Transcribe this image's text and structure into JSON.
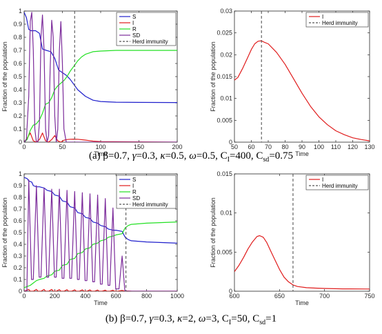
{
  "colors": {
    "S": "#1f1fcc",
    "I": "#e01b1b",
    "R": "#22e022",
    "SD": "#7b2a9a",
    "herd": "#555555"
  },
  "captions": {
    "a": {
      "prefix": "(a) β=0.7, ",
      "gamma": "γ",
      "p1": "=0.3, ",
      "kappa": "κ",
      "p2": "=0.5, ",
      "omega": "ω",
      "p3": "=0.5, C",
      "sub1": "I",
      "p4": "=400, C",
      "sub2": "sd",
      "p5": "=0.75"
    },
    "b": {
      "prefix": "(b) β=0.7, ",
      "gamma": "γ",
      "p1": "=0.3, ",
      "kappa": "κ",
      "p2": "=2, ",
      "omega": "ω",
      "p3": "=3, C",
      "sub1": "I",
      "p4": "=50, C",
      "sub2": "sd",
      "p5": "=1"
    }
  },
  "chart_data": [
    {
      "type": "line",
      "xlabel": "Time",
      "ylabel": "Fraction of the population",
      "xlim": [
        0,
        200
      ],
      "ylim": [
        0,
        1
      ],
      "xticks": [
        0,
        50,
        100,
        150,
        200
      ],
      "yticks": [
        0,
        0.1,
        0.2,
        0.3,
        0.4,
        0.5,
        0.6,
        0.7,
        0.8,
        0.9,
        1
      ],
      "legend": [
        "S",
        "I",
        "R",
        "SD",
        "Herd immunity"
      ],
      "legend_position": "top-right",
      "herd_immunity_x": 66,
      "series": [
        {
          "name": "S",
          "x": [
            0,
            3,
            6,
            9,
            15,
            20,
            24,
            29,
            35,
            40,
            45,
            50,
            55,
            60,
            65,
            70,
            80,
            90,
            100,
            120,
            150,
            200
          ],
          "y": [
            0.99,
            0.95,
            0.86,
            0.85,
            0.85,
            0.83,
            0.71,
            0.7,
            0.69,
            0.64,
            0.55,
            0.53,
            0.51,
            0.48,
            0.44,
            0.4,
            0.35,
            0.32,
            0.31,
            0.305,
            0.303,
            0.302
          ]
        },
        {
          "name": "I",
          "x": [
            0,
            4,
            8,
            12,
            16,
            20,
            24,
            28,
            32,
            36,
            40,
            44,
            48,
            52,
            56,
            60,
            65,
            70,
            80,
            90,
            100,
            200
          ],
          "y": [
            0.0,
            0.03,
            0.07,
            0.01,
            0.0,
            0.02,
            0.07,
            0.01,
            0.0,
            0.02,
            0.05,
            0.01,
            0.0,
            0.015,
            0.02,
            0.022,
            0.023,
            0.022,
            0.016,
            0.008,
            0.004,
            0.0
          ]
        },
        {
          "name": "R",
          "x": [
            0,
            4,
            8,
            12,
            16,
            20,
            24,
            28,
            32,
            36,
            40,
            44,
            48,
            52,
            56,
            60,
            65,
            70,
            75,
            80,
            90,
            100,
            120,
            200
          ],
          "y": [
            0.0,
            0.02,
            0.09,
            0.13,
            0.14,
            0.17,
            0.22,
            0.29,
            0.3,
            0.34,
            0.4,
            0.43,
            0.45,
            0.47,
            0.5,
            0.54,
            0.58,
            0.62,
            0.65,
            0.67,
            0.69,
            0.695,
            0.7,
            0.7
          ]
        },
        {
          "name": "SD",
          "x": [
            0,
            3,
            6,
            8,
            10,
            12,
            14,
            16,
            18,
            20,
            22,
            24,
            26,
            28,
            30,
            32,
            34,
            36,
            38,
            40,
            42,
            44,
            46,
            48,
            50,
            52,
            55,
            60,
            200
          ],
          "y": [
            0.0,
            0.02,
            0.35,
            0.92,
            0.99,
            0.7,
            0.1,
            0.0,
            0.0,
            0.15,
            0.8,
            0.97,
            0.7,
            0.1,
            0.0,
            0.05,
            0.55,
            0.93,
            0.8,
            0.2,
            0.0,
            0.1,
            0.7,
            0.92,
            0.6,
            0.1,
            0.0,
            0.0,
            0.0
          ]
        }
      ]
    },
    {
      "type": "line",
      "xlabel": "Time",
      "ylabel": "Fraction of the population",
      "xlim": [
        50,
        130
      ],
      "ylim": [
        0,
        0.03
      ],
      "xticks": [
        50,
        60,
        70,
        80,
        90,
        100,
        110,
        120,
        130
      ],
      "yticks": [
        0,
        0.005,
        0.01,
        0.015,
        0.02,
        0.025,
        0.03
      ],
      "legend": [
        "I",
        "Herd immunity"
      ],
      "legend_position": "top-right",
      "herd_immunity_x": 66,
      "series": [
        {
          "name": "I",
          "x": [
            50,
            52,
            55,
            58,
            60,
            62,
            64,
            66,
            68,
            70,
            75,
            80,
            85,
            90,
            95,
            100,
            105,
            110,
            115,
            120,
            125,
            130
          ],
          "y": [
            0.0142,
            0.0148,
            0.017,
            0.0195,
            0.0212,
            0.0225,
            0.0231,
            0.0232,
            0.0228,
            0.0225,
            0.0205,
            0.0178,
            0.0145,
            0.0112,
            0.0082,
            0.0058,
            0.004,
            0.0026,
            0.0017,
            0.001,
            0.0006,
            0.0003
          ]
        }
      ]
    },
    {
      "type": "line",
      "xlabel": "Time",
      "ylabel": "Fraction of the population",
      "xlim": [
        0,
        1000
      ],
      "ylim": [
        0,
        1
      ],
      "xticks": [
        0,
        200,
        400,
        600,
        800,
        1000
      ],
      "yticks": [
        0,
        0.1,
        0.2,
        0.3,
        0.4,
        0.5,
        0.6,
        0.7,
        0.8,
        0.9,
        1
      ],
      "legend": [
        "S",
        "I",
        "R",
        "SD",
        "Herd immunity"
      ],
      "legend_position": "top-right",
      "herd_immunity_x": 665,
      "sd_oscillation": {
        "peaks": [
          30,
          80,
          130,
          180,
          230,
          280,
          330,
          380,
          430,
          480,
          530,
          580,
          640
        ],
        "peak_values": [
          0.95,
          0.9,
          0.88,
          0.87,
          0.87,
          0.86,
          0.85,
          0.84,
          0.83,
          0.82,
          0.79,
          0.71,
          0.3
        ],
        "troughs": [
          0.1,
          0.12,
          0.12,
          0.12,
          0.11,
          0.11,
          0.1,
          0.09,
          0.08,
          0.06,
          0.05,
          0.02,
          0.0
        ]
      },
      "series": [
        {
          "name": "S",
          "x": [
            0,
            20,
            30,
            50,
            60,
            80,
            100,
            130,
            150,
            180,
            200,
            230,
            250,
            280,
            300,
            330,
            350,
            380,
            400,
            430,
            450,
            480,
            500,
            530,
            550,
            580,
            600,
            640,
            660,
            680,
            700,
            800,
            1000
          ],
          "y": [
            0.97,
            0.96,
            0.94,
            0.93,
            0.9,
            0.89,
            0.89,
            0.88,
            0.86,
            0.85,
            0.82,
            0.81,
            0.77,
            0.76,
            0.72,
            0.71,
            0.67,
            0.66,
            0.63,
            0.62,
            0.59,
            0.58,
            0.56,
            0.55,
            0.53,
            0.52,
            0.52,
            0.51,
            0.46,
            0.44,
            0.43,
            0.42,
            0.41
          ]
        },
        {
          "name": "I",
          "x": [
            0,
            30,
            40,
            60,
            80,
            90,
            110,
            130,
            140,
            160,
            180,
            190,
            210,
            230,
            240,
            260,
            280,
            290,
            310,
            330,
            340,
            360,
            380,
            390,
            410,
            430,
            440,
            460,
            480,
            490,
            510,
            530,
            540,
            560,
            580,
            590,
            610,
            640,
            650,
            700,
            1000
          ],
          "y": [
            0.0,
            0.015,
            0.0,
            0.0,
            0.015,
            0.0,
            0.0,
            0.015,
            0.0,
            0.0,
            0.015,
            0.0,
            0.0,
            0.014,
            0.0,
            0.0,
            0.013,
            0.0,
            0.0,
            0.012,
            0.0,
            0.0,
            0.012,
            0.0,
            0.0,
            0.011,
            0.0,
            0.0,
            0.01,
            0.0,
            0.0,
            0.009,
            0.0,
            0.0,
            0.008,
            0.0,
            0.0,
            0.007,
            0.003,
            0.001,
            0.0
          ]
        },
        {
          "name": "R",
          "x": [
            0,
            20,
            40,
            60,
            80,
            100,
            130,
            150,
            180,
            200,
            230,
            250,
            280,
            300,
            330,
            350,
            380,
            400,
            430,
            450,
            480,
            500,
            530,
            550,
            580,
            600,
            640,
            660,
            680,
            700,
            800,
            1000
          ],
          "y": [
            0.03,
            0.04,
            0.05,
            0.07,
            0.09,
            0.1,
            0.11,
            0.13,
            0.14,
            0.17,
            0.18,
            0.22,
            0.23,
            0.27,
            0.28,
            0.32,
            0.33,
            0.36,
            0.37,
            0.4,
            0.41,
            0.43,
            0.44,
            0.46,
            0.47,
            0.48,
            0.49,
            0.54,
            0.56,
            0.57,
            0.58,
            0.59
          ]
        }
      ]
    },
    {
      "type": "line",
      "xlabel": "Time",
      "ylabel": "Fraction of the population",
      "xlim": [
        600,
        750
      ],
      "ylim": [
        0,
        0.015
      ],
      "xticks": [
        600,
        650,
        700,
        750
      ],
      "yticks": [
        0,
        0.005,
        0.01,
        0.015
      ],
      "legend": [
        "I",
        "Herd immunity"
      ],
      "legend_position": "top-right",
      "herd_immunity_x": 665,
      "series": [
        {
          "name": "I",
          "x": [
            600,
            605,
            610,
            615,
            620,
            625,
            628,
            632,
            636,
            640,
            645,
            650,
            655,
            660,
            665,
            670,
            680,
            690,
            700,
            720,
            750
          ],
          "y": [
            0.0025,
            0.0033,
            0.0043,
            0.0054,
            0.0063,
            0.007,
            0.0071,
            0.0069,
            0.0062,
            0.0052,
            0.004,
            0.0028,
            0.0018,
            0.0012,
            0.0008,
            0.0006,
            0.00045,
            0.0004,
            0.00035,
            0.0003,
            0.00028
          ]
        }
      ]
    }
  ]
}
